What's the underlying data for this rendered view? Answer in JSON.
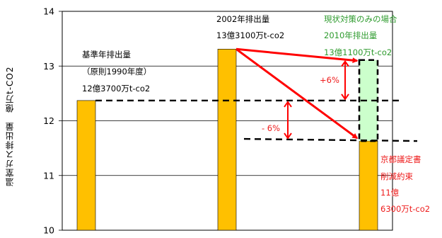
{
  "chart_data": {
    "type": "bar",
    "ylabel": "温室ガス排出量　億万t-CO2",
    "ylim": [
      10,
      14
    ],
    "yticks": [
      "10",
      "11",
      "12",
      "13",
      "14"
    ],
    "grid": true,
    "series": [
      {
        "values": [
          12.37,
          13.31,
          11.63
        ]
      }
    ],
    "colors": {
      "bar": "#ffc000",
      "bar_edge": "#000000",
      "projection_fill": "#ccffcc",
      "arrow": "#ff0000",
      "dashed": "#000000",
      "green_text": "#2e9b2e",
      "red_text": "#ee1c1c"
    },
    "projection": {
      "value_low": 11.63,
      "value_high": 13.11
    },
    "reference_line": 12.37,
    "annotations": {
      "base": [
        "基準年排出量",
        "（原則1990年度）",
        "12億3700万t-co2"
      ],
      "y2002": [
        "2002年排出量",
        "13億3100万t-co2"
      ],
      "current": [
        "現状対策のみの場合",
        "2010年排出量",
        "13億1100万t-co2"
      ],
      "kyoto": [
        "京都議定書",
        "削減約束",
        "11億",
        "6300万t-co2"
      ],
      "plus6": "+6%",
      "minus6": "- 6%"
    }
  }
}
